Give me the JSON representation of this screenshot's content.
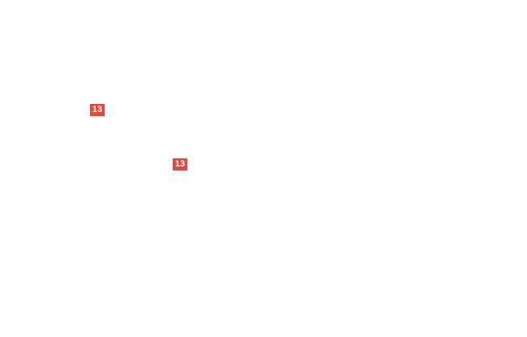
{
  "canvas": {
    "background_color": "#ffffff"
  },
  "callouts": [
    {
      "label": "13",
      "color": "#e8463c",
      "text_color": "#ffffff"
    },
    {
      "label": "13",
      "color": "#e8463c",
      "text_color": "#ffffff"
    }
  ]
}
